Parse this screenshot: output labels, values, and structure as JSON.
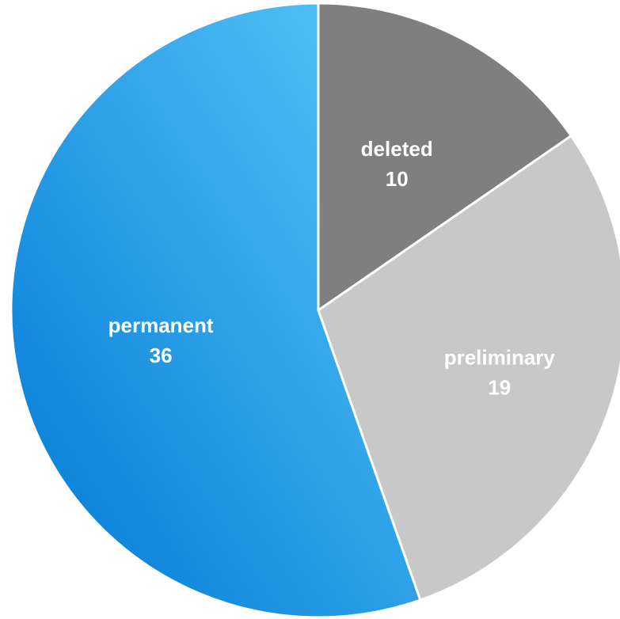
{
  "chart_data": {
    "type": "pie",
    "title": "",
    "slices": [
      {
        "label": "deleted",
        "value": 10,
        "color": "#7f7f7f"
      },
      {
        "label": "preliminary",
        "value": 19,
        "color": "#c8c8c8"
      },
      {
        "label": "permanent",
        "value": 36,
        "color": "#1e9be0"
      }
    ],
    "start_angle": "12 o'clock",
    "direction": "clockwise",
    "gradient": {
      "permanent": [
        "#5ac8fa",
        "#0078d4"
      ]
    },
    "legend": "none",
    "data_labels": "inside"
  }
}
